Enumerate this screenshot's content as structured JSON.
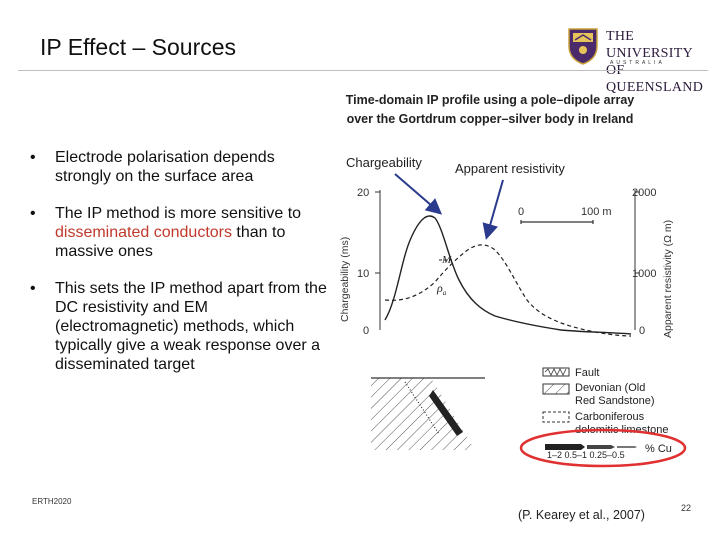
{
  "slide": {
    "title": "IP Effect – Sources",
    "footer_left": "ERTH2020",
    "citation": "(P. Kearey et al., 2007)",
    "page_number": "22"
  },
  "logo": {
    "line1": "THE UNIVERSITY",
    "line2": "OF QUEENSLAND",
    "line3": "AUSTRALIA"
  },
  "caption": {
    "line1": "Time-domain IP profile using a pole–dipole array",
    "line2": "over the Gortdrum copper–silver body in Ireland"
  },
  "bullets": [
    {
      "parts": [
        "Electrode polarisation depends strongly on the surface area"
      ]
    },
    {
      "parts": [
        "The IP method is more sensitive to ",
        "disseminated conductors",
        " than to massive ones"
      ]
    },
    {
      "parts": [
        "This sets the IP method apart from the DC resistivity and EM (electromagnetic) methods, which typically give a weak response over a disseminated target"
      ]
    }
  ],
  "figure": {
    "label_chargeability": "Chargeability",
    "label_resistivity": "Apparent resistivity",
    "left_axis_title": "Chargeability (ms)",
    "left_ticks": [
      "20",
      "10",
      "0"
    ],
    "right_axis_title": "Apparent resistivity (Ω m)",
    "right_ticks": [
      "2000",
      "1000",
      "0"
    ],
    "scale_0": "0",
    "scale_100": "100 m",
    "curve_M": "M",
    "curve_rho": "ρ",
    "curve_rho_sub": "a",
    "legend": {
      "fault": "Fault",
      "devonian1": "Devonian (Old",
      "devonian2": "Red Sandstone)",
      "carb1": "Carboniferous",
      "carb2": "dolomitic limestone",
      "cu_values": "1–2  0.5–1  0.25–0.5",
      "cu_label": "% Cu"
    },
    "colors": {
      "arrow": "#2a3a8c",
      "highlight_circle": "#e03030",
      "accent_text": "#c0392b"
    }
  }
}
